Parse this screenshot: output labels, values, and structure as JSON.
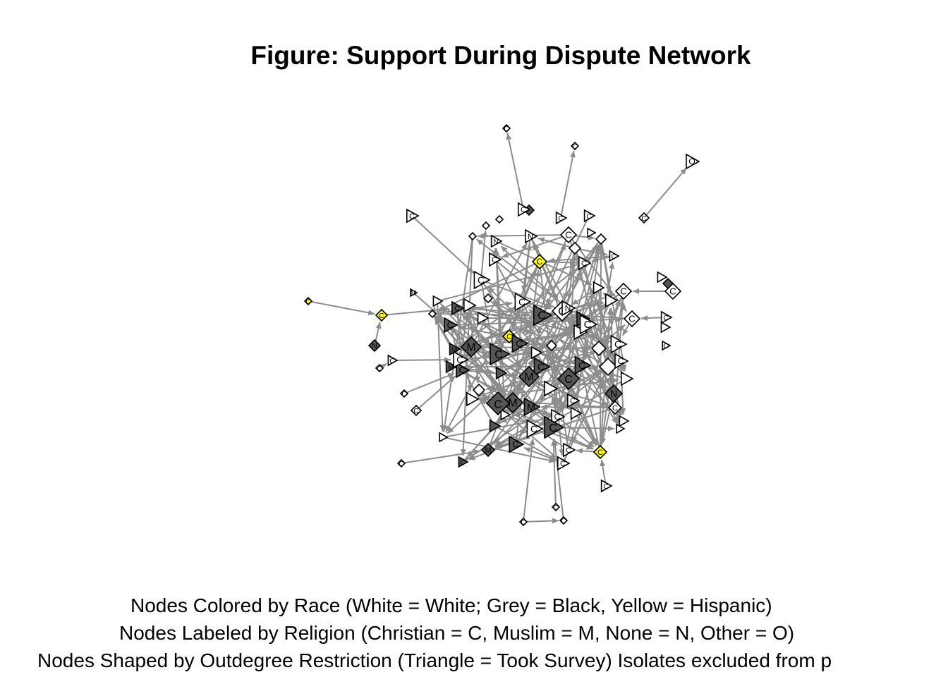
{
  "figure": {
    "title": "Figure: Support During Dispute Network",
    "captions": [
      "Nodes Colored by Race (White = White; Grey = Black, Yellow = Hispanic)",
      "Nodes Labeled by Religion (Christian = C, Muslim = M, None = N, Other = O)",
      "Nodes Shaped by Outdegree Restriction (Triangle = Took Survey) Isolates excluded from p"
    ]
  },
  "colors": {
    "white": "#ffffff",
    "grey": "#555555",
    "yellow": "#ffff00",
    "edge": "#8c8c8c",
    "outline": "#000000"
  },
  "nodes": [
    {
      "label": "C",
      "race": "white"
    },
    {
      "label": "C",
      "race": "white"
    },
    {
      "label": "O",
      "race": "white"
    },
    {
      "label": "C",
      "race": "white"
    },
    {
      "label": "C",
      "race": "white"
    },
    {
      "label": "C",
      "race": "white"
    },
    {
      "label": "C",
      "race": "white"
    },
    {
      "label": "C",
      "race": "white"
    },
    {
      "label": "N",
      "race": "white"
    },
    {
      "label": "C",
      "race": "white"
    },
    {
      "label": "N",
      "race": "white"
    },
    {
      "label": "C",
      "race": "yellow"
    },
    {
      "label": "C",
      "race": "white"
    },
    {
      "label": "C",
      "race": "white"
    },
    {
      "label": "M",
      "race": "white"
    },
    {
      "label": "C",
      "race": "yellow"
    },
    {
      "label": "N",
      "race": "grey"
    },
    {
      "label": "C",
      "race": "yellow"
    },
    {
      "label": "C",
      "race": "white"
    },
    {
      "label": "C",
      "race": "white"
    },
    {
      "label": "C",
      "race": "grey"
    },
    {
      "label": "C",
      "race": "white"
    },
    {
      "label": "C",
      "race": "white"
    },
    {
      "label": "C",
      "race": "white"
    },
    {
      "label": "C",
      "race": "white"
    },
    {
      "label": "C",
      "race": "yellow"
    },
    {
      "label": "M",
      "race": "grey"
    },
    {
      "label": "C",
      "race": "grey"
    },
    {
      "label": "C",
      "race": "grey"
    },
    {
      "label": "C",
      "race": "white"
    },
    {
      "label": "M",
      "race": "grey"
    },
    {
      "label": "C",
      "race": "grey"
    },
    {
      "label": "C",
      "race": "white"
    },
    {
      "label": "C",
      "race": "grey"
    },
    {
      "label": "C",
      "race": "grey"
    },
    {
      "label": "C",
      "race": "grey"
    },
    {
      "label": "C",
      "race": "grey"
    },
    {
      "label": "N",
      "race": "grey"
    },
    {
      "label": "M",
      "race": "grey"
    },
    {
      "label": "M",
      "race": "grey"
    },
    {
      "label": "C",
      "race": "grey"
    },
    {
      "label": "M",
      "race": "grey"
    },
    {
      "label": "C",
      "race": "white"
    },
    {
      "label": "C",
      "race": "white"
    },
    {
      "label": "C",
      "race": "white"
    },
    {
      "label": "M",
      "race": "grey"
    },
    {
      "label": "C",
      "race": "grey"
    },
    {
      "label": "C",
      "race": "white"
    },
    {
      "label": "C",
      "race": "yellow"
    },
    {
      "label": "C",
      "race": "white"
    },
    {
      "label": "C",
      "race": "white"
    },
    {
      "label": "C",
      "race": "white"
    },
    {
      "label": "C",
      "race": "white"
    },
    {
      "label": "C",
      "race": "white"
    },
    {
      "label": "C",
      "race": "white"
    },
    {
      "label": "C",
      "race": "white"
    },
    {
      "label": "N",
      "race": "white"
    },
    {
      "label": "C",
      "race": "white"
    },
    {
      "label": "C",
      "race": "white"
    },
    {
      "label": "C",
      "race": "white"
    },
    {
      "label": "C",
      "race": "white"
    },
    {
      "label": "C",
      "race": "white"
    },
    {
      "label": "M",
      "race": "grey"
    },
    {
      "label": "C",
      "race": "grey"
    },
    {
      "label": "C",
      "race": "grey"
    },
    {
      "label": "C",
      "race": "white"
    },
    {
      "label": "C",
      "race": "white"
    },
    {
      "label": "C",
      "race": "white"
    },
    {
      "label": "C",
      "race": "white"
    },
    {
      "label": "C",
      "race": "grey"
    }
  ]
}
